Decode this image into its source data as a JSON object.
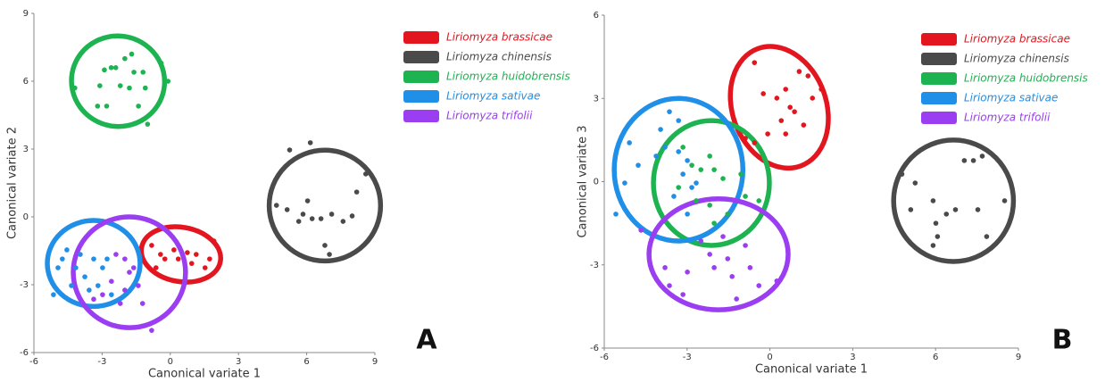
{
  "chart_data": [
    {
      "type": "scatter",
      "xlabel": "Canonical variate 1",
      "ylabel": "Canonical variate 2",
      "panel_label": "A",
      "xlim": [
        -6,
        9
      ],
      "xticks": [
        -6,
        -3,
        0,
        3,
        6,
        9
      ],
      "ylim": [
        -6,
        9
      ],
      "yticks": [
        -6,
        -3,
        0,
        3,
        6,
        9
      ],
      "legend": "upper right",
      "series": [
        {
          "name": "Liriomyza brassicae",
          "color": "#e3161f",
          "x": [
            -0.82,
            -0.43,
            -0.24,
            0.16,
            0.35,
            0.75,
            0.94,
            1.14,
            1.53,
            1.73,
            1.92,
            -0.63
          ],
          "values": [
            -1.26,
            -1.66,
            -1.86,
            -1.46,
            -1.86,
            -1.58,
            -2.06,
            -1.66,
            -2.25,
            -1.86,
            -1.07,
            -2.25
          ],
          "ellipse": {
            "center": [
              0.47,
              -1.66
            ],
            "radii": [
              1.76,
              1.2
            ],
            "angle": -10
          }
        },
        {
          "name": "Liriomyza chinensis",
          "color": "#4a4a4a",
          "x": [
            5.25,
            6.16,
            6.04,
            5.84,
            6.24,
            5.65,
            5.14,
            6.63,
            7.1,
            7.6,
            8.0,
            8.2,
            8.6,
            6.8,
            7.0,
            4.67
          ],
          "values": [
            2.96,
            3.28,
            0.71,
            0.12,
            -0.08,
            -0.2,
            0.32,
            -0.08,
            0.12,
            -0.2,
            0.04,
            1.1,
            1.9,
            -1.26,
            -1.66,
            0.51
          ],
          "ellipse": {
            "center": [
              6.8,
              0.5
            ],
            "radii": [
              2.45,
              2.45
            ],
            "angle": 0
          }
        },
        {
          "name": "Liriomyza huidobrensis",
          "color": "#1db350",
          "x": [
            -2.0,
            -1.7,
            -2.6,
            -2.9,
            -2.4,
            -1.6,
            -1.2,
            -2.2,
            -1.8,
            -1.1,
            -3.1,
            -4.2,
            -3.2,
            -2.8,
            -1.4,
            -0.4,
            -0.1,
            -1.0
          ],
          "values": [
            7.0,
            7.2,
            6.6,
            6.5,
            6.6,
            6.4,
            6.4,
            5.8,
            5.7,
            5.7,
            5.8,
            5.7,
            4.9,
            4.9,
            4.9,
            6.8,
            6.0,
            4.1
          ],
          "ellipse": {
            "center": [
              -2.3,
              6.0
            ],
            "radii": [
              2.05,
              2.0
            ],
            "angle": -10
          }
        },
        {
          "name": "Liriomyza sativae",
          "color": "#1f8fe8",
          "x": [
            -5.14,
            -4.94,
            -4.55,
            -4.16,
            -3.76,
            -3.57,
            -3.18,
            -2.98,
            -2.78,
            -3.37,
            -3.96,
            -4.35,
            -2.59,
            -4.75
          ],
          "values": [
            -3.44,
            -2.25,
            -1.46,
            -2.25,
            -2.65,
            -3.24,
            -3.04,
            -2.25,
            -1.86,
            -1.86,
            -1.66,
            -3.04,
            -3.44,
            -1.86
          ],
          "ellipse": {
            "center": [
              -3.37,
              -2.06
            ],
            "radii": [
              2.04,
              1.9
            ],
            "angle": 0
          }
        },
        {
          "name": "Liriomyza trifolii",
          "color": "#9b3df0",
          "x": [
            -2.39,
            -2.0,
            -1.8,
            -1.61,
            -1.41,
            -2.0,
            -2.59,
            -2.98,
            -1.22,
            -0.82,
            -2.2,
            -3.37
          ],
          "values": [
            -1.66,
            -1.86,
            -2.45,
            -2.25,
            -3.04,
            -3.24,
            -2.85,
            -3.44,
            -3.83,
            -5.02,
            -3.83,
            -3.64
          ],
          "ellipse": {
            "center": [
              -1.8,
              -2.45
            ],
            "radii": [
              2.47,
              2.45
            ],
            "angle": 0
          }
        }
      ]
    },
    {
      "type": "scatter",
      "xlabel": "Canonical variate 1",
      "ylabel": "Canonical variate 3",
      "panel_label": "B",
      "xlim": [
        -6,
        9
      ],
      "xticks": [
        -6,
        -3,
        0,
        3,
        6,
        9
      ],
      "ylim": [
        -6,
        6
      ],
      "yticks": [
        -6,
        -3,
        0,
        3,
        6
      ],
      "legend": "upper right",
      "series": [
        {
          "name": "Liriomyza brassicae",
          "color": "#e3161f",
          "x": [
            -0.56,
            -0.24,
            0.25,
            0.57,
            0.73,
            0.89,
            1.06,
            1.38,
            1.54,
            1.86,
            0.41,
            -0.08,
            -0.56,
            -0.89,
            0.57,
            1.22
          ],
          "values": [
            4.29,
            3.17,
            3.01,
            3.33,
            2.68,
            2.52,
            3.97,
            3.81,
            3.01,
            3.33,
            2.2,
            1.72,
            1.4,
            1.56,
            1.72,
            2.04
          ],
          "ellipse": {
            "center": [
              0.34,
              2.68
            ],
            "radii": [
              1.7,
              2.25
            ],
            "angle": 20
          }
        },
        {
          "name": "Liriomyza chinensis",
          "color": "#4a4a4a",
          "x": [
            4.78,
            5.26,
            5.1,
            5.91,
            6.01,
            6.07,
            6.39,
            6.72,
            7.53,
            7.04,
            7.37,
            7.69,
            7.85,
            8.5,
            5.91
          ],
          "values": [
            0.27,
            -0.05,
            -1.01,
            -0.69,
            -1.5,
            -1.98,
            -1.17,
            -1.01,
            -1.01,
            0.76,
            0.76,
            0.92,
            -1.98,
            -0.69,
            -2.3
          ],
          "ellipse": {
            "center": [
              6.65,
              -0.69
            ],
            "radii": [
              2.17,
              2.19
            ],
            "angle": 0
          }
        },
        {
          "name": "Liriomyza huidobrensis",
          "color": "#1db350",
          "x": [
            -3.15,
            -2.83,
            -2.5,
            -2.18,
            -2.02,
            -1.7,
            -2.67,
            -2.18,
            -1.53,
            -1.05,
            -0.89,
            -0.4,
            -2.02,
            -3.31
          ],
          "values": [
            1.24,
            0.59,
            0.43,
            0.92,
            0.43,
            0.11,
            -0.69,
            -0.85,
            -1.17,
            0.27,
            -0.53,
            -0.69,
            -1.5,
            -0.21
          ],
          "ellipse": {
            "center": [
              -2.12,
              -0.05
            ],
            "radii": [
              2.1,
              2.25
            ],
            "angle": 0
          }
        },
        {
          "name": "Liriomyza sativae",
          "color": "#1f8fe8",
          "x": [
            -5.09,
            -4.77,
            -3.96,
            -3.64,
            -3.31,
            -3.31,
            -3.15,
            -2.99,
            -2.83,
            -2.67,
            -5.26,
            -5.58,
            -3.8,
            -4.12,
            -3.48,
            -2.99
          ],
          "values": [
            1.4,
            0.59,
            1.88,
            2.52,
            2.2,
            1.08,
            0.27,
            0.76,
            -0.21,
            -0.05,
            -0.05,
            -1.17,
            1.24,
            0.92,
            -0.53,
            -1.17
          ],
          "ellipse": {
            "center": [
              -3.31,
              0.43
            ],
            "radii": [
              2.33,
              2.57
            ],
            "angle": 0
          }
        },
        {
          "name": "Liriomyza trifolii",
          "color": "#9b3df0",
          "x": [
            -4.67,
            -3.8,
            -3.64,
            -2.99,
            -2.5,
            -2.18,
            -2.02,
            -1.7,
            -1.53,
            -1.37,
            -0.89,
            -0.72,
            -0.4,
            -3.15,
            -1.21,
            0.25
          ],
          "values": [
            -1.75,
            -3.1,
            -3.75,
            -3.26,
            -2.14,
            -2.62,
            -3.1,
            -1.98,
            -2.78,
            -3.42,
            -2.3,
            -3.1,
            -3.75,
            -4.07,
            -4.23,
            -3.58
          ],
          "ellipse": {
            "center": [
              -1.86,
              -2.62
            ],
            "radii": [
              2.52,
              2.0
            ],
            "angle": 0
          }
        }
      ]
    }
  ]
}
